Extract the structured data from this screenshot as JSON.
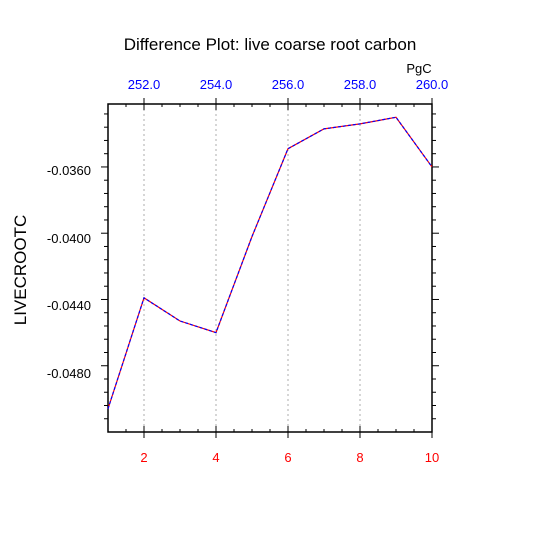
{
  "chart_data": {
    "type": "line",
    "title": "Difference Plot: live coarse root carbon",
    "ylabel": "LIVECROOTC",
    "xlabel": "",
    "x": [
      1,
      2,
      3,
      4,
      5,
      6,
      7,
      8,
      9,
      10
    ],
    "series": [
      {
        "values": [
          -0.0506,
          -0.0439,
          -0.0453,
          -0.046,
          -0.0402,
          -0.0349,
          -0.0337,
          -0.0334,
          -0.033,
          -0.036
        ]
      }
    ],
    "xlim": [
      1,
      10
    ],
    "ylim": [
      -0.052,
      -0.0322
    ],
    "x_ticks": [
      "2",
      "4",
      "6",
      "8",
      "10"
    ],
    "y_ticks": [
      "-0.0360",
      "-0.0400",
      "-0.0440",
      "-0.0480"
    ],
    "top_axis": {
      "unit": "PgC",
      "ticks": [
        "252.0",
        "254.0",
        "256.0",
        "258.0",
        "260.0"
      ]
    },
    "grid": "dotted vertical lines at major x ticks",
    "colors": {
      "line_outer": "#ff0000",
      "line_inner": "#0000ff",
      "bottom_ticks": "#ff0000",
      "top_ticks": "#0000ff",
      "axis": "#000000",
      "grid": "#999999"
    }
  }
}
